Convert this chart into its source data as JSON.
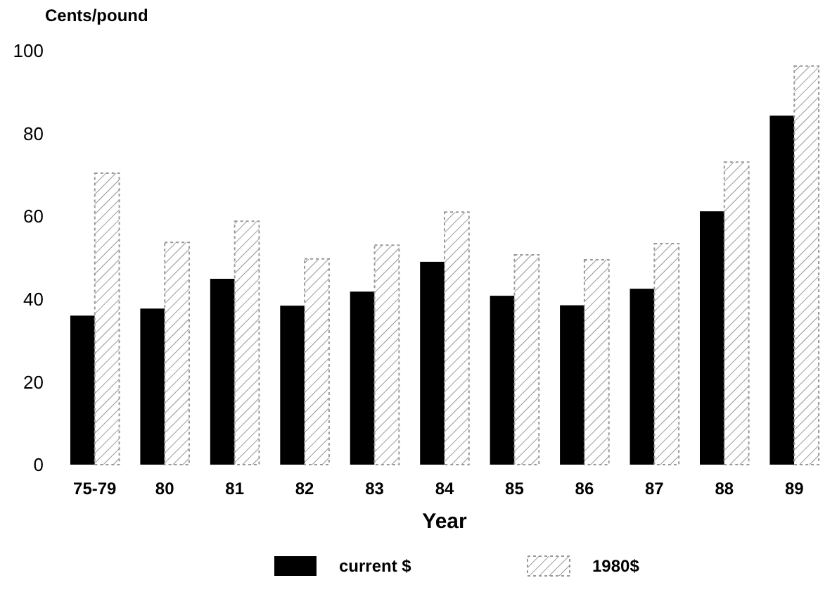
{
  "chart_data": {
    "type": "bar",
    "ylabel": "Cents/pound",
    "xlabel": "Year",
    "categories": [
      "75-79",
      "80",
      "81",
      "82",
      "83",
      "84",
      "85",
      "86",
      "87",
      "88",
      "89"
    ],
    "series": [
      {
        "name": "current $",
        "color": "#000000",
        "values": [
          36,
          37.7,
          44.9,
          38.4,
          41.8,
          49,
          40.8,
          38.5,
          42.5,
          61.2,
          84.3
        ]
      },
      {
        "name": "1980$",
        "color": "#999999",
        "values": [
          70.4,
          53.7,
          58.8,
          49.7,
          53,
          61,
          50.7,
          49.5,
          53.4,
          73.1,
          96.3
        ]
      }
    ],
    "ylim": [
      0,
      100
    ],
    "yticks": [
      0,
      20,
      40,
      60,
      80,
      100
    ],
    "grid": false,
    "legend": "bottom"
  }
}
